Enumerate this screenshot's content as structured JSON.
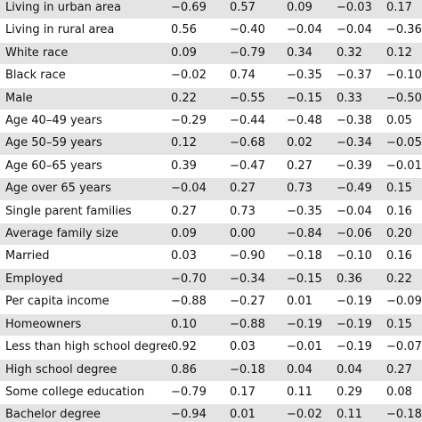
{
  "table": {
    "rows": [
      {
        "label": "Living in urban area",
        "values": [
          "−0.69",
          "0.57",
          "0.09",
          "−0.03",
          "0.17"
        ]
      },
      {
        "label": "Living in rural area",
        "values": [
          "0.56",
          "−0.40",
          "−0.04",
          "−0.04",
          "−0.36"
        ]
      },
      {
        "label": "White race",
        "values": [
          "0.09",
          "−0.79",
          "0.34",
          "0.32",
          "0.12"
        ]
      },
      {
        "label": "Black race",
        "values": [
          "−0.02",
          "0.74",
          "−0.35",
          "−0.37",
          "−0.10"
        ]
      },
      {
        "label": "Male",
        "values": [
          "0.22",
          "−0.55",
          "−0.15",
          "0.33",
          "−0.50"
        ]
      },
      {
        "label": "Age 40–49 years",
        "values": [
          "−0.29",
          "−0.44",
          "−0.48",
          "−0.38",
          "0.05"
        ]
      },
      {
        "label": "Age 50–59 years",
        "values": [
          "0.12",
          "−0.68",
          "0.02",
          "−0.34",
          "−0.05"
        ]
      },
      {
        "label": "Age 60–65 years",
        "values": [
          "0.39",
          "−0.47",
          "0.27",
          "−0.39",
          "−0.01"
        ]
      },
      {
        "label": "Age over 65 years",
        "values": [
          "−0.04",
          "0.27",
          "0.73",
          "−0.49",
          "0.15"
        ]
      },
      {
        "label": "Single parent families",
        "values": [
          "0.27",
          "0.73",
          "−0.35",
          "−0.04",
          "0.16"
        ]
      },
      {
        "label": "Average family size",
        "values": [
          "0.09",
          "0.00",
          "−0.84",
          "−0.06",
          "0.20"
        ]
      },
      {
        "label": "Married",
        "values": [
          "0.03",
          "−0.90",
          "−0.18",
          "−0.10",
          "0.16"
        ]
      },
      {
        "label": "Employed",
        "values": [
          "−0.70",
          "−0.34",
          "−0.15",
          "0.36",
          "0.22"
        ]
      },
      {
        "label": "Per capita income",
        "values": [
          "−0.88",
          "−0.27",
          "0.01",
          "−0.19",
          "−0.09"
        ]
      },
      {
        "label": "Homeowners",
        "values": [
          "0.10",
          "−0.88",
          "−0.19",
          "−0.19",
          "0.15"
        ]
      },
      {
        "label": "Less than high school degree",
        "values": [
          "0.92",
          "0.03",
          "−0.01",
          "−0.19",
          "−0.07"
        ]
      },
      {
        "label": "High school degree",
        "values": [
          "0.86",
          "−0.18",
          "0.04",
          "0.04",
          "0.27"
        ]
      },
      {
        "label": "Some college education",
        "values": [
          "−0.79",
          "0.17",
          "0.11",
          "0.29",
          "0.08"
        ]
      },
      {
        "label": "Bachelor degree",
        "values": [
          "−0.94",
          "0.01",
          "−0.02",
          "0.11",
          "−0.18"
        ]
      }
    ]
  },
  "colors": {
    "shade": "#e4e4e4",
    "text": "#111111"
  }
}
